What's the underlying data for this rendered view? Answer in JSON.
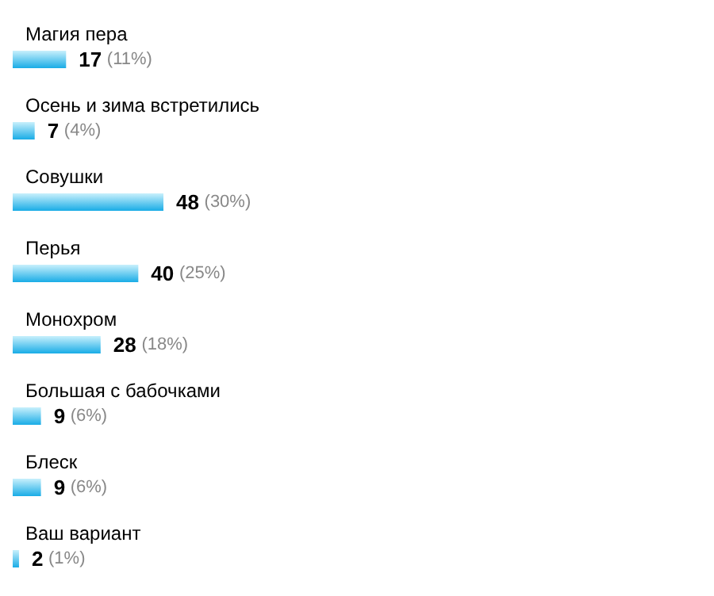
{
  "chart_data": {
    "type": "bar",
    "orientation": "horizontal",
    "categories": [
      "Магия пера",
      "Осень и зима встретились",
      "Совушки",
      "Перья",
      "Монохром",
      "Большая с бабочками",
      "Блеск",
      "Ваш вариант"
    ],
    "values": [
      17,
      7,
      48,
      40,
      28,
      9,
      9,
      2
    ],
    "value_labels": [
      "17 (11%)",
      "7 (4%)",
      "48 (30%)",
      "40 (25%)",
      "28 (18%)",
      "9 (6%)",
      "9 (6%)",
      "2 (1%)"
    ],
    "color": "#19ace6"
  }
}
